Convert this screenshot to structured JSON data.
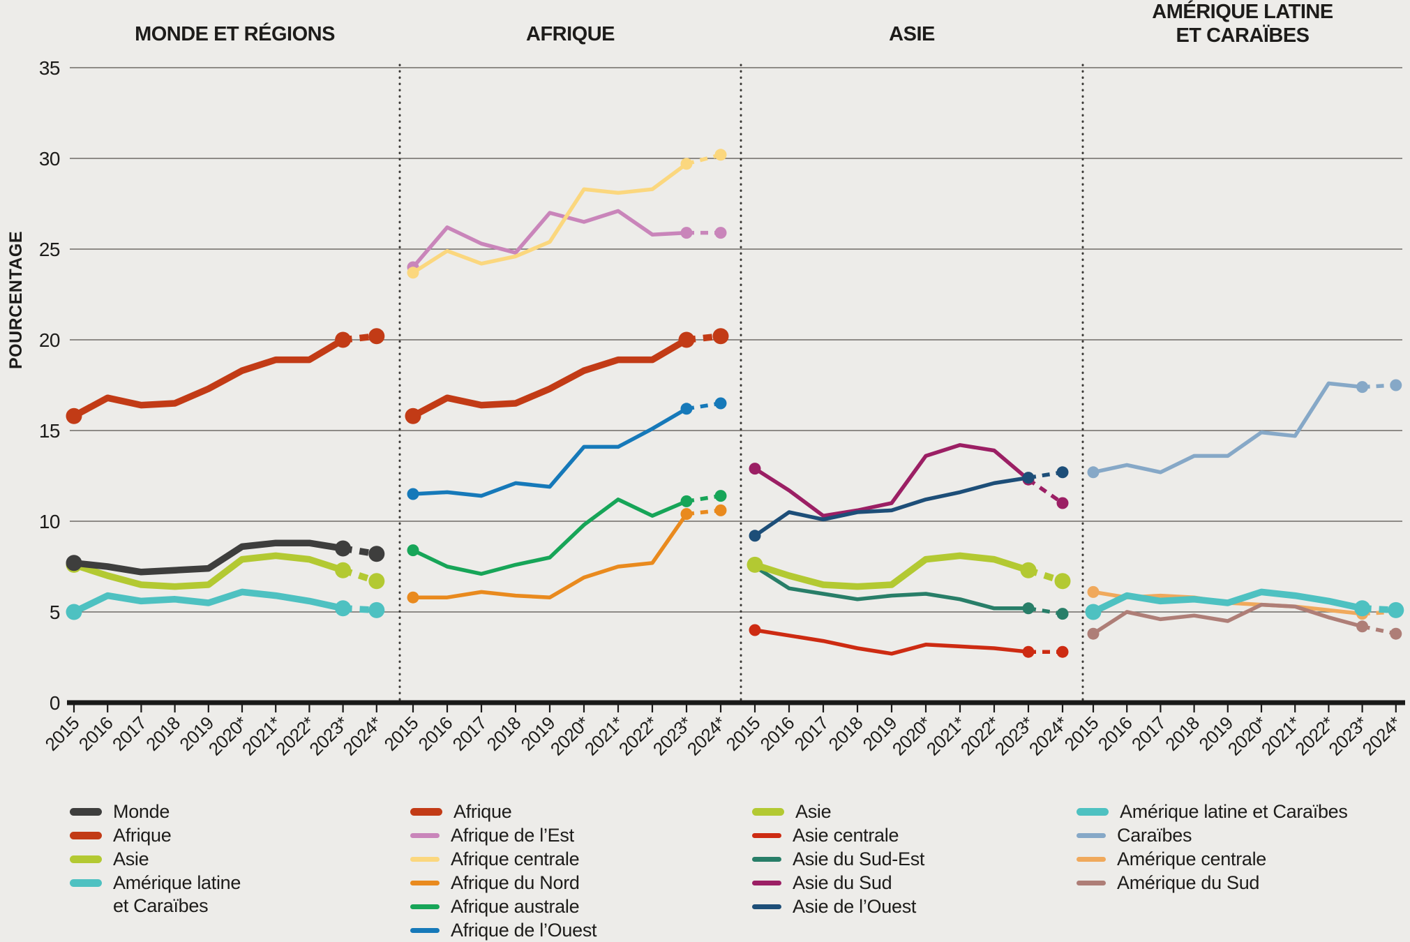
{
  "chart_data": {
    "type": "line",
    "title": "",
    "y_axis": {
      "label": "POURCENTAGE",
      "ticks": [
        0,
        5,
        10,
        15,
        20,
        25,
        30,
        35
      ],
      "max": 35
    },
    "x_labels": [
      "2015",
      "2016",
      "2017",
      "2018",
      "2019",
      "2020*",
      "2021*",
      "2022*",
      "2023*",
      "2024*"
    ],
    "markers_at_years": [
      "2015",
      "2023*",
      "2024*"
    ],
    "dashed_segment_years": [
      "2023*",
      "2024*"
    ],
    "grid": "horizontal",
    "series": {
      "monde": {
        "label": "Monde",
        "color": "#3E3E3D",
        "thick": true,
        "values": [
          7.7,
          7.5,
          7.2,
          7.3,
          7.4,
          8.6,
          8.8,
          8.8,
          8.5,
          8.2
        ]
      },
      "afrique": {
        "label": "Afrique",
        "color": "#C23B16",
        "thick": true,
        "values": [
          15.8,
          16.8,
          16.4,
          16.5,
          17.3,
          18.3,
          18.9,
          18.9,
          20.0,
          20.2
        ]
      },
      "asie": {
        "label": "Asie",
        "color": "#B3C932",
        "thick": true,
        "values": [
          7.6,
          7.0,
          6.5,
          6.4,
          6.5,
          7.9,
          8.1,
          7.9,
          7.3,
          6.7
        ]
      },
      "amlat": {
        "label": "Amérique latine et Caraïbes",
        "color": "#4EC1C1",
        "thick": true,
        "values": [
          5.0,
          5.9,
          5.6,
          5.7,
          5.5,
          6.1,
          5.9,
          5.6,
          5.2,
          5.1
        ]
      },
      "afr_est": {
        "label": "Afrique de l’Est",
        "color": "#C985BA",
        "thick": false,
        "values": [
          24.0,
          26.2,
          25.3,
          24.8,
          27.0,
          26.5,
          27.1,
          25.8,
          25.9,
          25.9
        ]
      },
      "afr_centrale": {
        "label": "Afrique centrale",
        "color": "#FBD77E",
        "thick": false,
        "values": [
          23.7,
          24.9,
          24.2,
          24.6,
          25.4,
          28.3,
          28.1,
          28.3,
          29.7,
          30.2
        ]
      },
      "afr_nord": {
        "label": "Afrique du Nord",
        "color": "#E98A1E",
        "thick": false,
        "values": [
          5.8,
          5.8,
          6.1,
          5.9,
          5.8,
          6.9,
          7.5,
          7.7,
          10.4,
          10.6
        ]
      },
      "afr_australe": {
        "label": "Afrique australe",
        "color": "#17A558",
        "thick": false,
        "values": [
          8.4,
          7.5,
          7.1,
          7.6,
          8.0,
          9.8,
          11.2,
          10.3,
          11.1,
          11.4
        ]
      },
      "afr_ouest": {
        "label": "Afrique de l’Ouest",
        "color": "#1679B9",
        "thick": false,
        "values": [
          11.5,
          11.6,
          11.4,
          12.1,
          11.9,
          14.1,
          14.1,
          15.1,
          16.2,
          16.5
        ]
      },
      "asie_centrale": {
        "label": "Asie centrale",
        "color": "#CD2B12",
        "thick": false,
        "values": [
          4.0,
          3.7,
          3.4,
          3.0,
          2.7,
          3.2,
          3.1,
          3.0,
          2.8,
          2.8
        ]
      },
      "asie_sudest": {
        "label": "Asie du Sud-Est",
        "color": "#287E68",
        "thick": false,
        "values": [
          7.5,
          6.3,
          6.0,
          5.7,
          5.9,
          6.0,
          5.7,
          5.2,
          5.2,
          4.9
        ]
      },
      "asie_sud": {
        "label": "Asie du Sud",
        "color": "#9B1F64",
        "thick": false,
        "values": [
          12.9,
          11.7,
          10.3,
          10.6,
          11.0,
          13.6,
          14.2,
          13.9,
          12.3,
          11.0
        ]
      },
      "asie_ouest": {
        "label": "Asie de l’Ouest",
        "color": "#1D4E78",
        "thick": false,
        "values": [
          9.2,
          10.5,
          10.1,
          10.5,
          10.6,
          11.2,
          11.6,
          12.1,
          12.4,
          12.7
        ]
      },
      "caraibes": {
        "label": "Caraïbes",
        "color": "#86A8C7",
        "thick": false,
        "values": [
          12.7,
          13.1,
          12.7,
          13.6,
          13.6,
          14.9,
          14.7,
          17.6,
          17.4,
          17.5
        ]
      },
      "am_centrale": {
        "label": "Amérique centrale",
        "color": "#F0A95C",
        "thick": false,
        "values": [
          6.1,
          5.8,
          5.9,
          5.8,
          5.5,
          5.4,
          5.3,
          5.1,
          4.9,
          5.0
        ]
      },
      "am_sud": {
        "label": "Amérique du Sud",
        "color": "#AE7E77",
        "thick": false,
        "values": [
          3.8,
          5.0,
          4.6,
          4.8,
          4.5,
          5.4,
          5.3,
          4.7,
          4.2,
          3.8
        ]
      }
    },
    "panels": [
      {
        "title_lines": [
          "MONDE ET RÉGIONS"
        ],
        "draw": [
          "amlat",
          "asie",
          "afrique",
          "monde"
        ]
      },
      {
        "title_lines": [
          "AFRIQUE"
        ],
        "draw": [
          "afr_est",
          "afr_centrale",
          "afr_nord",
          "afr_australe",
          "afr_ouest",
          "afrique"
        ]
      },
      {
        "title_lines": [
          "ASIE"
        ],
        "draw": [
          "asie_centrale",
          "asie_sudest",
          "asie_sud",
          "asie_ouest",
          "asie"
        ]
      },
      {
        "title_lines": [
          "AMÉRIQUE LATINE",
          "ET CARAÏBES"
        ],
        "draw": [
          "caraibes",
          "am_centrale",
          "am_sud",
          "amlat"
        ]
      }
    ],
    "legend_columns": [
      {
        "items": [
          {
            "id": "monde"
          },
          {
            "id": "afrique"
          },
          {
            "id": "asie"
          },
          {
            "id": "amlat",
            "lines": [
              "Amérique latine",
              "et Caraïbes"
            ]
          }
        ]
      },
      {
        "items": [
          {
            "id": "afrique"
          },
          {
            "id": "afr_est"
          },
          {
            "id": "afr_centrale"
          },
          {
            "id": "afr_nord"
          },
          {
            "id": "afr_australe"
          },
          {
            "id": "afr_ouest"
          }
        ]
      },
      {
        "items": [
          {
            "id": "asie"
          },
          {
            "id": "asie_centrale"
          },
          {
            "id": "asie_sudest"
          },
          {
            "id": "asie_sud"
          },
          {
            "id": "asie_ouest"
          }
        ]
      },
      {
        "items": [
          {
            "id": "amlat"
          },
          {
            "id": "caraibes"
          },
          {
            "id": "am_centrale"
          },
          {
            "id": "am_sud"
          }
        ]
      }
    ],
    "colors": {
      "background": "#EDECE9",
      "gridline": "#6F6B67",
      "axis": "#191918",
      "separator": "#3B3936",
      "text": "#1D1C1A"
    }
  }
}
